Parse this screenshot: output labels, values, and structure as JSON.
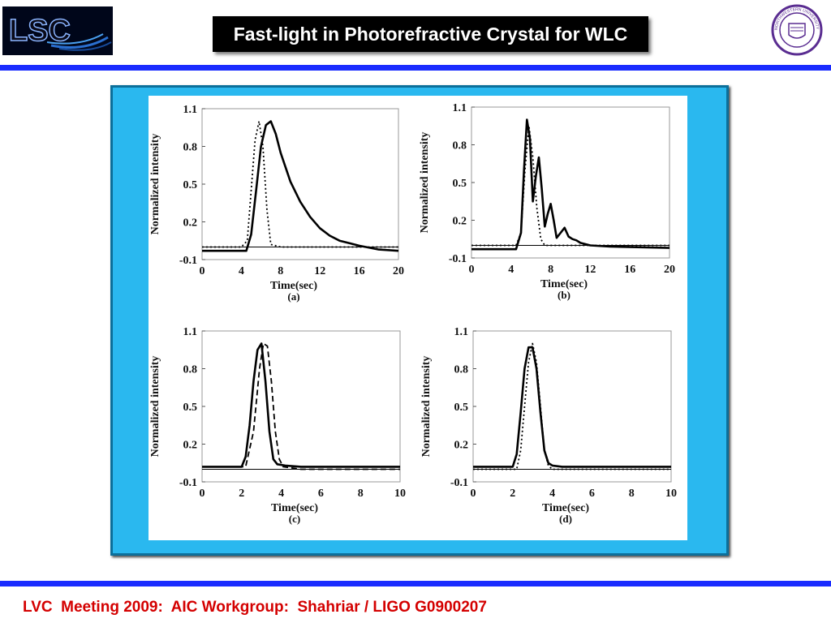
{
  "slide": {
    "title": "Fast-light in Photorefractive Crystal for WLC",
    "footer": "LVC  Meeting 2009:  AIC Workgroup:  Shahriar / LIGO G0900207",
    "logo_left": "LSC",
    "logo_right_text": "NORTHWESTERN UNIVERSITY · 1851",
    "colors": {
      "rule": "#1a2cff",
      "frame": "#2ab8ef",
      "footer": "#d40000",
      "title_bg": "#000000"
    }
  },
  "chart_data": [
    {
      "type": "line",
      "caption": "(a)",
      "xlabel": "Time(sec)",
      "ylabel": "Normalized intensity",
      "xlim": [
        0,
        20
      ],
      "ylim": [
        -0.1,
        1.1
      ],
      "xticks": [
        "0",
        "4",
        "8",
        "12",
        "16",
        "20"
      ],
      "yticks": [
        "1.1",
        "0.8",
        "0.5",
        "0.2",
        "-0.1"
      ],
      "series": [
        {
          "style": "dotted",
          "x": [
            0,
            4,
            4.6,
            5,
            5.4,
            5.8,
            6.2,
            6.6,
            7,
            8,
            12,
            16,
            20
          ],
          "y": [
            0,
            0,
            0.05,
            0.45,
            0.85,
            1.0,
            0.8,
            0.3,
            0.02,
            0,
            0,
            0,
            0
          ]
        },
        {
          "style": "solid",
          "x": [
            0,
            4.5,
            5,
            5.5,
            6,
            6.5,
            7,
            7.5,
            8,
            9,
            10,
            11,
            12,
            13,
            14,
            15,
            16,
            18,
            20
          ],
          "y": [
            -0.03,
            -0.03,
            0.1,
            0.45,
            0.8,
            0.97,
            1.0,
            0.9,
            0.75,
            0.52,
            0.36,
            0.24,
            0.15,
            0.09,
            0.05,
            0.03,
            0.01,
            -0.02,
            -0.03
          ]
        }
      ]
    },
    {
      "type": "line",
      "caption": "(b)",
      "xlabel": "Time(sec)",
      "ylabel": "Normalized intensity",
      "xlim": [
        0,
        20
      ],
      "ylim": [
        -0.1,
        1.1
      ],
      "xticks": [
        "0",
        "4",
        "8",
        "12",
        "16",
        "20"
      ],
      "yticks": [
        "1.1",
        "0.8",
        "0.5",
        "0.2",
        "-0.1"
      ],
      "series": [
        {
          "style": "dotted",
          "x": [
            0,
            4.5,
            5,
            5.4,
            5.8,
            6.2,
            6.6,
            7,
            7.4,
            8,
            12,
            16,
            20
          ],
          "y": [
            0,
            0,
            0.1,
            0.6,
            0.95,
            0.7,
            0.3,
            0.05,
            0,
            0,
            0,
            0,
            0
          ]
        },
        {
          "style": "solid",
          "x": [
            0,
            4.5,
            5,
            5.3,
            5.6,
            5.9,
            6.2,
            6.5,
            6.8,
            7.1,
            7.4,
            7.7,
            8,
            8.3,
            8.6,
            9,
            9.4,
            9.8,
            10.2,
            10.6,
            11,
            12,
            14,
            20
          ],
          "y": [
            -0.03,
            -0.03,
            0.1,
            0.6,
            1.0,
            0.85,
            0.35,
            0.55,
            0.7,
            0.45,
            0.15,
            0.25,
            0.33,
            0.2,
            0.06,
            0.1,
            0.14,
            0.07,
            0.05,
            0.04,
            0.02,
            0,
            -0.01,
            -0.02
          ]
        }
      ]
    },
    {
      "type": "line",
      "caption": "(c)",
      "xlabel": "Time(sec)",
      "ylabel": "Normalized intensity",
      "xlim": [
        0,
        10
      ],
      "ylim": [
        -0.1,
        1.1
      ],
      "xticks": [
        "0",
        "2",
        "4",
        "6",
        "8",
        "10"
      ],
      "yticks": [
        "1.1",
        "0.8",
        "0.5",
        "0.2",
        "-0.1"
      ],
      "series": [
        {
          "style": "dashed",
          "x": [
            0,
            2.2,
            2.6,
            2.9,
            3.1,
            3.3,
            3.5,
            3.7,
            3.9,
            4.1,
            5,
            10
          ],
          "y": [
            0.02,
            0.02,
            0.3,
            0.8,
            1.0,
            0.98,
            0.7,
            0.3,
            0.08,
            0.02,
            0,
            0
          ]
        },
        {
          "style": "solid",
          "x": [
            0,
            2,
            2.2,
            2.4,
            2.6,
            2.8,
            3.0,
            3.2,
            3.4,
            3.6,
            3.8,
            4.2,
            5,
            7,
            10
          ],
          "y": [
            0.02,
            0.02,
            0.1,
            0.35,
            0.7,
            0.95,
            1.0,
            0.7,
            0.3,
            0.08,
            0.04,
            0.03,
            0.02,
            0.02,
            0.02
          ]
        }
      ]
    },
    {
      "type": "line",
      "caption": "(d)",
      "xlabel": "Time(sec)",
      "ylabel": "Normalized intensity",
      "xlim": [
        0,
        10
      ],
      "ylim": [
        -0.1,
        1.1
      ],
      "xticks": [
        "0",
        "2",
        "4",
        "6",
        "8",
        "10"
      ],
      "yticks": [
        "1.1",
        "0.8",
        "0.5",
        "0.2",
        "-0.1"
      ],
      "series": [
        {
          "style": "dotted",
          "x": [
            0,
            2.2,
            2.4,
            2.6,
            2.8,
            3.0,
            3.2,
            3.4,
            3.6,
            3.8,
            4.0,
            10
          ],
          "y": [
            0,
            0,
            0.15,
            0.5,
            0.85,
            1.0,
            0.85,
            0.5,
            0.15,
            0.03,
            0,
            0
          ]
        },
        {
          "style": "solid",
          "x": [
            0,
            2,
            2.2,
            2.4,
            2.6,
            2.8,
            3.0,
            3.2,
            3.4,
            3.6,
            3.8,
            4.0,
            4.5,
            6,
            8,
            10
          ],
          "y": [
            0.02,
            0.02,
            0.12,
            0.45,
            0.8,
            0.97,
            0.97,
            0.8,
            0.45,
            0.15,
            0.05,
            0.03,
            0.02,
            0.02,
            0.02,
            0.02
          ]
        }
      ]
    }
  ]
}
